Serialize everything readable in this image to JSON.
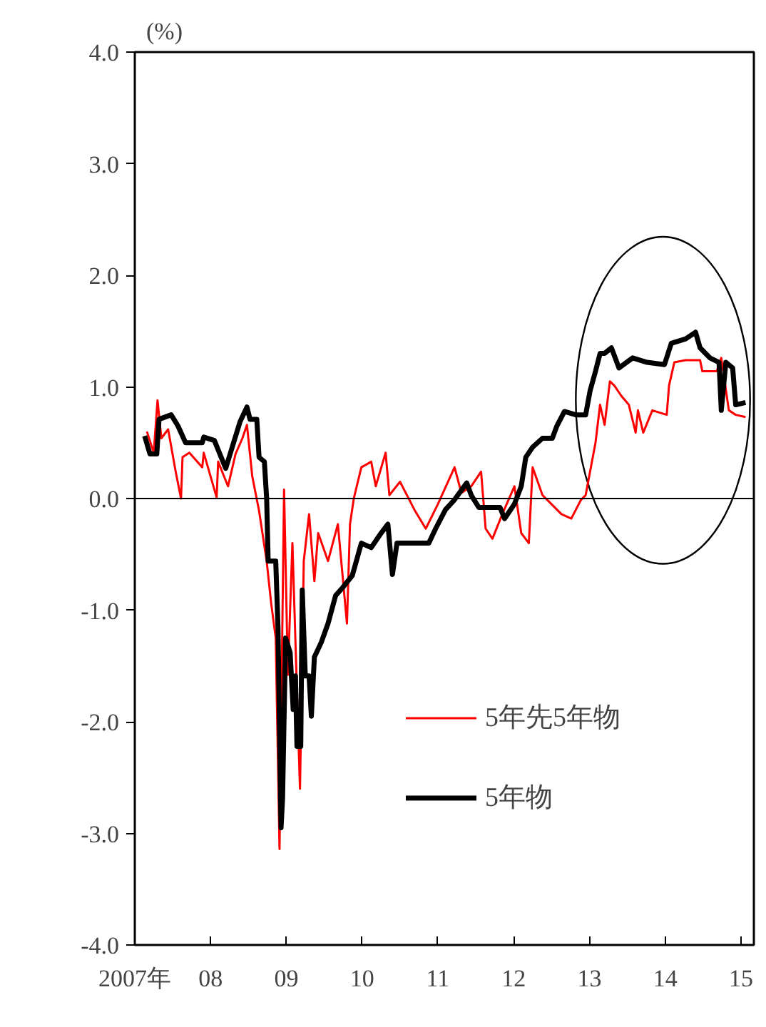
{
  "chart_data": {
    "type": "line",
    "ylabel": "(%)",
    "xlim": [
      2007,
      2015.17
    ],
    "ylim": [
      -4,
      4
    ],
    "xticks": [
      {
        "value": 2007,
        "label": "2007年"
      },
      {
        "value": 2008,
        "label": "08"
      },
      {
        "value": 2009,
        "label": "09"
      },
      {
        "value": 2010,
        "label": "10"
      },
      {
        "value": 2011,
        "label": "11"
      },
      {
        "value": 2012,
        "label": "12"
      },
      {
        "value": 2013,
        "label": "13"
      },
      {
        "value": 2014,
        "label": "14"
      },
      {
        "value": 2015,
        "label": "15"
      }
    ],
    "yticks": [
      {
        "value": -4,
        "label": "-4.0"
      },
      {
        "value": -3,
        "label": "-3.0"
      },
      {
        "value": -2,
        "label": "-2.0"
      },
      {
        "value": -1,
        "label": "-1.0"
      },
      {
        "value": 0,
        "label": "0.0"
      },
      {
        "value": 1,
        "label": "1.0"
      },
      {
        "value": 2,
        "label": "2.0"
      },
      {
        "value": 3,
        "label": "3.0"
      },
      {
        "value": 4,
        "label": "4.0"
      }
    ],
    "grid": false,
    "legend": "bottom right",
    "marker": "none",
    "line_style": "solid",
    "ref_lines": [
      {
        "axis": "y",
        "value": 0,
        "color": "#000000"
      }
    ],
    "series": [
      {
        "name": "5年先5年物",
        "color": "#ff0000",
        "x": [
          2007.16,
          2007.25,
          2007.3,
          2007.35,
          2007.44,
          2007.54,
          2007.61,
          2007.63,
          2007.72,
          2007.89,
          2007.91,
          2008.08,
          2008.1,
          2008.23,
          2008.33,
          2008.42,
          2008.48,
          2008.55,
          2008.64,
          2008.74,
          2008.8,
          2008.86,
          2008.91,
          2008.97,
          2009.02,
          2009.08,
          2009.18,
          2009.23,
          2009.3,
          2009.37,
          2009.42,
          2009.55,
          2009.68,
          2009.8,
          2009.84,
          2009.89,
          2009.99,
          2010.12,
          2010.18,
          2010.31,
          2010.36,
          2010.5,
          2010.69,
          2010.84,
          2011.0,
          2011.22,
          2011.31,
          2011.44,
          2011.57,
          2011.63,
          2011.72,
          2011.85,
          2012.01,
          2012.1,
          2012.2,
          2012.25,
          2012.38,
          2012.63,
          2012.76,
          2012.89,
          2012.95,
          2013.08,
          2013.14,
          2013.2,
          2013.27,
          2013.33,
          2013.42,
          2013.52,
          2013.61,
          2013.64,
          2013.71,
          2013.83,
          2014.02,
          2014.05,
          2014.12,
          2014.27,
          2014.46,
          2014.49,
          2014.68,
          2014.74,
          2014.84,
          2014.93,
          2015.06
        ],
        "values": [
          0.6,
          0.41,
          0.88,
          0.54,
          0.62,
          0.24,
          0.0,
          0.37,
          0.41,
          0.28,
          0.41,
          0.01,
          0.33,
          0.11,
          0.4,
          0.54,
          0.66,
          0.2,
          -0.11,
          -0.56,
          -0.94,
          -1.25,
          -3.14,
          0.08,
          -1.58,
          -0.4,
          -2.6,
          -0.56,
          -0.14,
          -0.74,
          -0.31,
          -0.56,
          -0.23,
          -1.12,
          -0.23,
          0.0,
          0.28,
          0.33,
          0.11,
          0.41,
          0.03,
          0.15,
          -0.1,
          -0.27,
          -0.05,
          0.28,
          0.05,
          0.11,
          0.24,
          -0.27,
          -0.36,
          -0.14,
          0.11,
          -0.31,
          -0.4,
          0.28,
          0.03,
          -0.14,
          -0.18,
          -0.01,
          0.03,
          0.5,
          0.84,
          0.66,
          1.05,
          1.01,
          0.92,
          0.84,
          0.59,
          0.79,
          0.59,
          0.79,
          0.75,
          1.01,
          1.22,
          1.24,
          1.24,
          1.14,
          1.14,
          1.26,
          0.79,
          0.75,
          0.73
        ]
      },
      {
        "name": "5年物",
        "color": "#000000",
        "x": [
          2007.13,
          2007.2,
          2007.29,
          2007.32,
          2007.48,
          2007.57,
          2007.67,
          2007.89,
          2007.91,
          2008.05,
          2008.2,
          2008.29,
          2008.39,
          2008.48,
          2008.52,
          2008.61,
          2008.64,
          2008.71,
          2008.74,
          2008.76,
          2008.86,
          2008.89,
          2008.93,
          2008.95,
          2008.99,
          2009.05,
          2009.09,
          2009.12,
          2009.14,
          2009.19,
          2009.21,
          2009.25,
          2009.3,
          2009.33,
          2009.37,
          2009.46,
          2009.55,
          2009.65,
          2009.74,
          2009.87,
          2009.99,
          2010.12,
          2010.25,
          2010.34,
          2010.4,
          2010.46,
          2010.69,
          2010.88,
          2010.97,
          2011.1,
          2011.22,
          2011.38,
          2011.44,
          2011.54,
          2011.82,
          2011.88,
          2012.01,
          2012.1,
          2012.16,
          2012.25,
          2012.38,
          2012.51,
          2012.57,
          2012.67,
          2012.82,
          2012.95,
          2013.01,
          2013.08,
          2013.14,
          2013.2,
          2013.29,
          2013.39,
          2013.57,
          2013.76,
          2013.99,
          2014.08,
          2014.27,
          2014.4,
          2014.46,
          2014.59,
          2014.71,
          2014.74,
          2014.8,
          2014.89,
          2014.93,
          2015.06
        ],
        "values": [
          0.56,
          0.4,
          0.4,
          0.71,
          0.75,
          0.65,
          0.5,
          0.5,
          0.55,
          0.52,
          0.27,
          0.47,
          0.69,
          0.82,
          0.71,
          0.71,
          0.37,
          0.33,
          0.0,
          -0.56,
          -0.56,
          -1.16,
          -2.95,
          -2.69,
          -1.25,
          -1.38,
          -1.89,
          -1.59,
          -2.22,
          -2.22,
          -0.82,
          -1.59,
          -1.59,
          -1.95,
          -1.42,
          -1.29,
          -1.12,
          -0.87,
          -0.8,
          -0.69,
          -0.4,
          -0.44,
          -0.31,
          -0.23,
          -0.68,
          -0.4,
          -0.4,
          -0.4,
          -0.27,
          -0.1,
          -0.01,
          0.14,
          0.03,
          -0.08,
          -0.08,
          -0.18,
          -0.05,
          0.11,
          0.37,
          0.46,
          0.54,
          0.54,
          0.65,
          0.78,
          0.75,
          0.75,
          0.97,
          1.14,
          1.3,
          1.3,
          1.35,
          1.17,
          1.26,
          1.22,
          1.2,
          1.39,
          1.43,
          1.49,
          1.35,
          1.26,
          1.22,
          0.79,
          1.22,
          1.17,
          0.84,
          0.86
        ]
      }
    ]
  }
}
